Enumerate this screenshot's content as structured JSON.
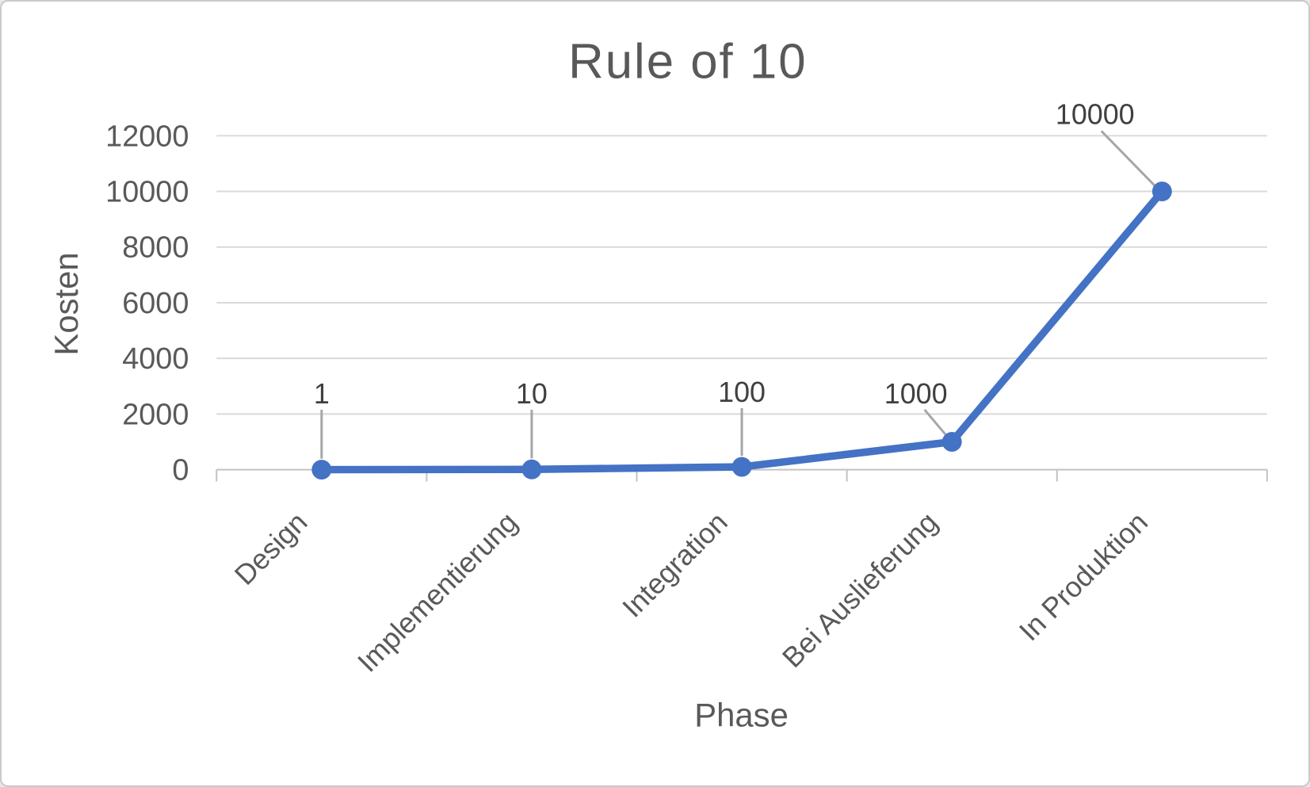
{
  "chart_data": {
    "type": "line",
    "title": "Rule of 10",
    "xlabel": "Phase",
    "ylabel": "Kosten",
    "categories": [
      "Design",
      "Implementierung",
      "Integration",
      "Bei Auslieferung",
      "In Produktion"
    ],
    "series": [
      {
        "name": "Kosten",
        "values": [
          1,
          10,
          100,
          1000,
          10000
        ]
      }
    ],
    "data_labels": [
      "1",
      "10",
      "100",
      "1000",
      "10000"
    ],
    "y_ticks": [
      0,
      2000,
      4000,
      6000,
      8000,
      10000,
      12000
    ],
    "ylim": [
      0,
      12000
    ],
    "grid": "horizontal",
    "legend": "none",
    "colors": {
      "series": "#4472C4",
      "gridline": "#D9D9D9",
      "axis_line": "#C3C3C3",
      "leader_line": "#A6A6A6",
      "title_text": "#595959",
      "axis_title_text": "#595959",
      "tick_text": "#595959",
      "category_text": "#595959",
      "data_label_text": "#404040",
      "background": "#FFFFFF"
    }
  }
}
